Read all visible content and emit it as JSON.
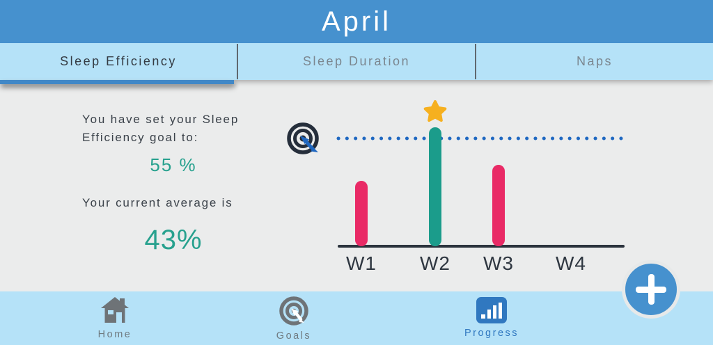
{
  "header": {
    "title": "April"
  },
  "tabs": [
    {
      "label": "Sleep Efficiency",
      "active": true
    },
    {
      "label": "Sleep Duration",
      "active": false
    },
    {
      "label": "Naps",
      "active": false
    }
  ],
  "goal_panel": {
    "goal_text": "You have set your Sleep Efficiency goal to:",
    "goal_value": "55 %",
    "average_text": "Your current average is",
    "average_value": "43%"
  },
  "chart_data": {
    "type": "bar",
    "categories": [
      "W1",
      "W2",
      "W3",
      "W4"
    ],
    "values": [
      33,
      60,
      41,
      0
    ],
    "unit": "%",
    "ylim": [
      0,
      100
    ],
    "goal_line": {
      "value": 55,
      "style": "dotted",
      "color": "#1f68c1"
    },
    "current_average": 43,
    "starred_category": "W2",
    "bar_color_below_goal": "#e92a66",
    "bar_color_above_goal": "#1b9c8b",
    "star_color": "#f6b01f",
    "axis_color": "#2b333d",
    "goal_marker_icon": "target-icon",
    "best_week_icon": "star-icon"
  },
  "fab": {
    "label": "+"
  },
  "nav": {
    "items": [
      {
        "label": "Home",
        "icon": "home-icon",
        "active": false
      },
      {
        "label": "Goals",
        "icon": "target-icon",
        "active": false
      },
      {
        "label": "Progress",
        "icon": "bar-chart-icon",
        "active": true
      }
    ]
  },
  "colors": {
    "header_bg": "#4691ce",
    "tab_bg": "#b5e2f8",
    "active_tab_underline": "#4188c7",
    "main_bg": "#ebecec",
    "teal_accent": "#27a18e",
    "nav_active": "#3078c0",
    "nav_inactive": "#6e7377"
  }
}
